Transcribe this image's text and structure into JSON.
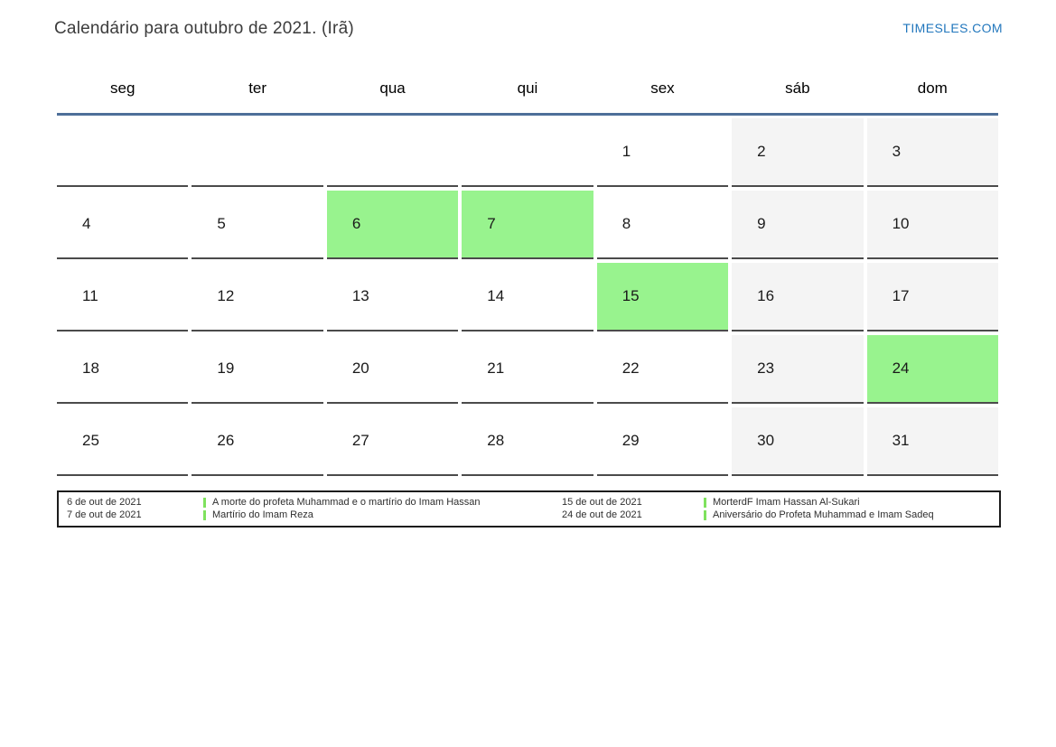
{
  "page": {
    "title": "Calendário para outubro de 2021. (Irã)",
    "brand": "TIMESLES.COM"
  },
  "calendar": {
    "weekdays": [
      "seg",
      "ter",
      "qua",
      "qui",
      "sex",
      "sáb",
      "dom"
    ],
    "weeks": [
      [
        {
          "day": "",
          "type": "empty"
        },
        {
          "day": "",
          "type": "empty"
        },
        {
          "day": "",
          "type": "empty"
        },
        {
          "day": "",
          "type": "empty"
        },
        {
          "day": "1",
          "type": "normal"
        },
        {
          "day": "2",
          "type": "weekend"
        },
        {
          "day": "3",
          "type": "weekend"
        }
      ],
      [
        {
          "day": "4",
          "type": "normal"
        },
        {
          "day": "5",
          "type": "normal"
        },
        {
          "day": "6",
          "type": "holiday"
        },
        {
          "day": "7",
          "type": "holiday"
        },
        {
          "day": "8",
          "type": "normal"
        },
        {
          "day": "9",
          "type": "weekend"
        },
        {
          "day": "10",
          "type": "weekend"
        }
      ],
      [
        {
          "day": "11",
          "type": "normal"
        },
        {
          "day": "12",
          "type": "normal"
        },
        {
          "day": "13",
          "type": "normal"
        },
        {
          "day": "14",
          "type": "normal"
        },
        {
          "day": "15",
          "type": "holiday"
        },
        {
          "day": "16",
          "type": "weekend"
        },
        {
          "day": "17",
          "type": "weekend"
        }
      ],
      [
        {
          "day": "18",
          "type": "normal"
        },
        {
          "day": "19",
          "type": "normal"
        },
        {
          "day": "20",
          "type": "normal"
        },
        {
          "day": "21",
          "type": "normal"
        },
        {
          "day": "22",
          "type": "normal"
        },
        {
          "day": "23",
          "type": "weekend"
        },
        {
          "day": "24",
          "type": "holiday"
        }
      ],
      [
        {
          "day": "25",
          "type": "normal"
        },
        {
          "day": "26",
          "type": "normal"
        },
        {
          "day": "27",
          "type": "normal"
        },
        {
          "day": "28",
          "type": "normal"
        },
        {
          "day": "29",
          "type": "normal"
        },
        {
          "day": "30",
          "type": "weekend"
        },
        {
          "day": "31",
          "type": "weekend"
        }
      ]
    ]
  },
  "legend": {
    "groups": [
      {
        "entries": [
          {
            "date": "6 de out de 2021",
            "event": "A morte do profeta Muhammad e o martírio do Imam Hassan"
          },
          {
            "date": "7 de out de 2021",
            "event": "Martírio do Imam Reza"
          }
        ]
      },
      {
        "entries": [
          {
            "date": "15 de out de 2021",
            "event": "MorterdF Imam Hassan Al-Sukari"
          },
          {
            "date": "24 de out de 2021",
            "event": "Aniversário do Profeta Muhammad e Imam Sadeq"
          }
        ]
      }
    ]
  },
  "colors": {
    "brand_blue": "#2277bd",
    "header_rule_blue": "#4d6f99",
    "holiday_green": "#98f38e",
    "weekend_gray": "#f4f4f4",
    "legend_marker_green": "#7fe25e",
    "cell_border_gray": "#4b4b4b"
  }
}
